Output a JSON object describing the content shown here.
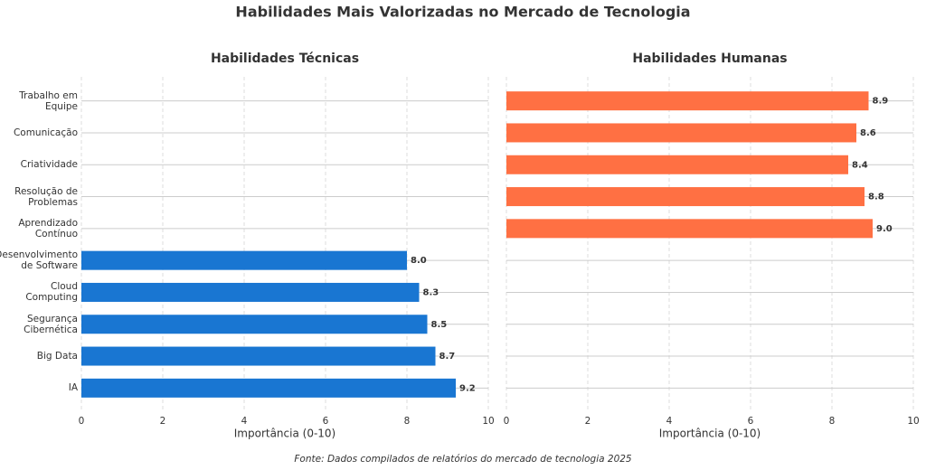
{
  "title": "Habilidades Mais Valorizadas no Mercado de Tecnologia",
  "source": "Fonte: Dados compilados de relatórios do mercado de tecnologia 2025",
  "categories": [
    "Trabalho em\nEquipe",
    "Comunicação",
    "Criatividade",
    "Resolução de\nProblemas",
    "Aprendizado\nContínuo",
    "Desenvolvimento\nde Software",
    "Cloud\nComputing",
    "Segurança\nCibernética",
    "Big Data",
    "IA"
  ],
  "chart_data": [
    {
      "type": "barh",
      "title": "Habilidades Técnicas",
      "color": "#1976d2",
      "values": [
        null,
        null,
        null,
        null,
        null,
        8.0,
        8.3,
        8.5,
        8.7,
        9.2
      ],
      "value_labels": [
        null,
        null,
        null,
        null,
        null,
        "8.0",
        "8.3",
        "8.5",
        "8.7",
        "9.2"
      ],
      "xlim": [
        0,
        10
      ],
      "xticks": [
        0,
        2,
        4,
        6,
        8,
        10
      ],
      "xlabel": "Importância (0-10)",
      "grid": true
    },
    {
      "type": "barh",
      "title": "Habilidades Humanas",
      "color": "#ff7043",
      "values": [
        8.9,
        8.6,
        8.4,
        8.8,
        9.0,
        null,
        null,
        null,
        null,
        null
      ],
      "value_labels": [
        "8.9",
        "8.6",
        "8.4",
        "8.8",
        "9.0",
        null,
        null,
        null,
        null,
        null
      ],
      "xlim": [
        0,
        10
      ],
      "xticks": [
        0,
        2,
        4,
        6,
        8,
        10
      ],
      "xlabel": "Importância (0-10)",
      "grid": true
    }
  ]
}
